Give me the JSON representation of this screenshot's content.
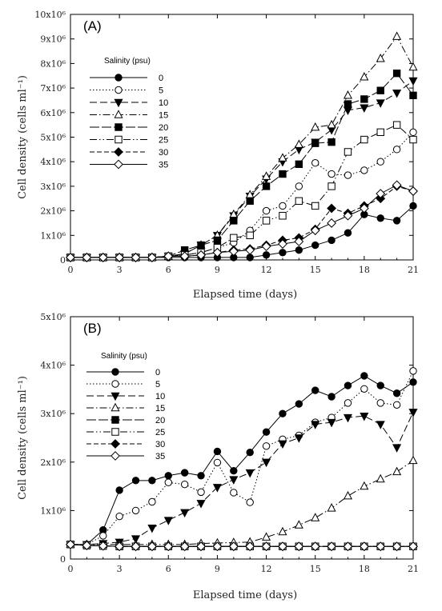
{
  "chart_data": [
    {
      "type": "line",
      "panel_label": "(A)",
      "xlabel": "Elapsed time (days)",
      "ylabel": "Cell density (cells ml⁻¹)",
      "xlim": [
        0,
        21
      ],
      "ylim": [
        0,
        10000000
      ],
      "x_ticks": [
        "0",
        "3",
        "6",
        "9",
        "12",
        "15",
        "18",
        "21"
      ],
      "y_ticks": [
        "0",
        "1x10⁶",
        "2x10⁶",
        "3x10⁶",
        "4x10⁶",
        "5x10⁶",
        "6x10⁶",
        "7x10⁶",
        "8x10⁶",
        "9x10⁶",
        "10x10⁶"
      ],
      "legend_title": "Salinity (psu)",
      "legend_position": "upper-left",
      "x": [
        0,
        1,
        2,
        3,
        4,
        5,
        6,
        7,
        8,
        9,
        10,
        11,
        12,
        13,
        14,
        15,
        16,
        17,
        18,
        19,
        20,
        21
      ],
      "series": [
        {
          "name": "0",
          "values": [
            100000,
            100000,
            100000,
            100000,
            100000,
            100000,
            100000,
            100000,
            100000,
            100000,
            100000,
            100000,
            200000,
            300000,
            400000,
            600000,
            800000,
            1100000,
            1850000,
            1700000,
            1600000,
            2200000
          ]
        },
        {
          "name": "5",
          "values": [
            100000,
            100000,
            100000,
            100000,
            100000,
            100000,
            150000,
            200000,
            300000,
            500000,
            700000,
            1200000,
            2000000,
            2200000,
            3000000,
            3950000,
            3500000,
            3450000,
            3650000,
            4000000,
            4500000,
            5200000
          ]
        },
        {
          "name": "10",
          "values": [
            100000,
            100000,
            100000,
            100000,
            100000,
            100000,
            150000,
            250000,
            600000,
            1000000,
            1800000,
            2600000,
            3300000,
            4000000,
            4500000,
            4800000,
            5300000,
            6100000,
            6200000,
            6400000,
            6800000,
            7300000
          ]
        },
        {
          "name": "15",
          "values": [
            100000,
            100000,
            100000,
            100000,
            100000,
            100000,
            150000,
            250000,
            600000,
            1000000,
            1850000,
            2650000,
            3400000,
            4150000,
            4700000,
            5400000,
            5500000,
            6700000,
            7450000,
            8200000,
            9100000,
            7850000
          ]
        },
        {
          "name": "20",
          "values": [
            100000,
            100000,
            100000,
            100000,
            100000,
            100000,
            150000,
            400000,
            600000,
            800000,
            1600000,
            2400000,
            3000000,
            3500000,
            3900000,
            4750000,
            4800000,
            6350000,
            6550000,
            6900000,
            7600000,
            6700000
          ]
        },
        {
          "name": "25",
          "values": [
            100000,
            100000,
            100000,
            100000,
            100000,
            100000,
            150000,
            200000,
            300000,
            500000,
            900000,
            1000000,
            1600000,
            1800000,
            2400000,
            2200000,
            3000000,
            4400000,
            4900000,
            5200000,
            5500000,
            4900000
          ]
        },
        {
          "name": "30",
          "values": [
            100000,
            100000,
            100000,
            100000,
            100000,
            100000,
            150000,
            150000,
            200000,
            300000,
            400000,
            450000,
            600000,
            800000,
            900000,
            1250000,
            2100000,
            1900000,
            2200000,
            2500000,
            3000000,
            2800000
          ]
        },
        {
          "name": "35",
          "values": [
            100000,
            100000,
            100000,
            100000,
            100000,
            100000,
            150000,
            150000,
            200000,
            300000,
            350000,
            400000,
            550000,
            650000,
            750000,
            1200000,
            1500000,
            1800000,
            2100000,
            2700000,
            3050000,
            2800000
          ]
        }
      ]
    },
    {
      "type": "line",
      "panel_label": "(B)",
      "xlabel": "Elapsed time (days)",
      "ylabel": "Cell density (cells ml⁻¹)",
      "xlim": [
        0,
        21
      ],
      "ylim": [
        0,
        5000000
      ],
      "x_ticks": [
        "0",
        "3",
        "6",
        "9",
        "12",
        "15",
        "18",
        "21"
      ],
      "y_ticks": [
        "0",
        "1x10⁶",
        "2x10⁶",
        "3x10⁶",
        "4x10⁶",
        "5x10⁶"
      ],
      "legend_title": "Salinity (psu)",
      "legend_position": "upper-left",
      "x": [
        0,
        1,
        2,
        3,
        4,
        5,
        6,
        7,
        8,
        9,
        10,
        11,
        12,
        13,
        14,
        15,
        16,
        17,
        18,
        19,
        20,
        21
      ],
      "series": [
        {
          "name": "0",
          "values": [
            300000,
            300000,
            600000,
            1420000,
            1620000,
            1620000,
            1720000,
            1780000,
            1720000,
            2220000,
            1820000,
            2200000,
            2620000,
            3000000,
            3200000,
            3480000,
            3350000,
            3580000,
            3780000,
            3580000,
            3420000,
            3650000
          ]
        },
        {
          "name": "5",
          "values": [
            300000,
            300000,
            480000,
            880000,
            1000000,
            1180000,
            1580000,
            1540000,
            1380000,
            1990000,
            1370000,
            1170000,
            2330000,
            2470000,
            2550000,
            2820000,
            2920000,
            3220000,
            3510000,
            3220000,
            3180000,
            3880000
          ]
        },
        {
          "name": "10",
          "values": [
            300000,
            300000,
            320000,
            350000,
            420000,
            640000,
            800000,
            960000,
            1150000,
            1480000,
            1640000,
            1780000,
            2000000,
            2380000,
            2500000,
            2780000,
            2820000,
            2920000,
            2950000,
            2780000,
            2300000,
            3030000
          ]
        },
        {
          "name": "15",
          "values": [
            300000,
            300000,
            300000,
            300000,
            300000,
            300000,
            300000,
            300000,
            320000,
            330000,
            340000,
            350000,
            450000,
            560000,
            700000,
            850000,
            1050000,
            1300000,
            1500000,
            1650000,
            1800000,
            2030000
          ]
        },
        {
          "name": "20",
          "values": [
            300000,
            280000,
            270000,
            260000,
            260000,
            260000,
            260000,
            260000,
            260000,
            260000,
            260000,
            260000,
            260000,
            260000,
            260000,
            260000,
            260000,
            260000,
            260000,
            260000,
            260000,
            260000
          ]
        },
        {
          "name": "25",
          "values": [
            300000,
            280000,
            270000,
            260000,
            260000,
            260000,
            260000,
            260000,
            260000,
            260000,
            260000,
            260000,
            260000,
            260000,
            260000,
            260000,
            260000,
            260000,
            260000,
            260000,
            260000,
            260000
          ]
        },
        {
          "name": "30",
          "values": [
            300000,
            280000,
            270000,
            260000,
            260000,
            260000,
            260000,
            260000,
            260000,
            260000,
            260000,
            260000,
            260000,
            260000,
            260000,
            260000,
            260000,
            260000,
            260000,
            260000,
            260000,
            260000
          ]
        },
        {
          "name": "35",
          "values": [
            300000,
            280000,
            270000,
            260000,
            260000,
            260000,
            260000,
            260000,
            260000,
            260000,
            260000,
            260000,
            260000,
            260000,
            260000,
            260000,
            260000,
            260000,
            260000,
            260000,
            260000,
            260000
          ]
        }
      ]
    }
  ]
}
